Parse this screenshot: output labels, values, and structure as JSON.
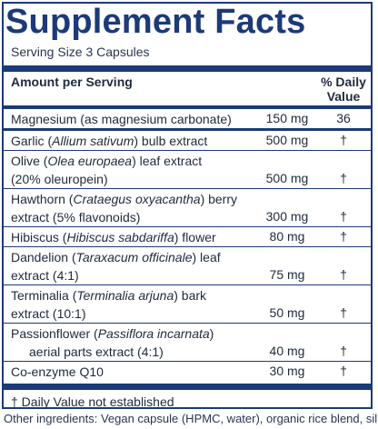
{
  "title": "Supplement Facts",
  "serving_size": "Serving Size 3 Capsules",
  "header": {
    "amount_per_serving": "Amount per Serving",
    "daily_value": "% Daily Value"
  },
  "rows": [
    {
      "name": "Magnesium (as magnesium carbonate)",
      "amount": "150 mg",
      "dv": "36"
    },
    {
      "name_pre": "Garlic (",
      "name_sci": "Allium sativum",
      "name_post": ") bulb extract",
      "amount": "500 mg",
      "dv": "†"
    },
    {
      "name_pre": "Olive (",
      "name_sci": "Olea europaea",
      "name_post": ") leaf extract",
      "name_l2": "(20% oleuropein)",
      "amount": "500 mg",
      "dv": "†"
    },
    {
      "name_pre": "Hawthorn (",
      "name_sci": "Crataegus oxyacantha",
      "name_post": ") berry",
      "name_l2": "extract (5% flavonoids)",
      "amount": "300 mg",
      "dv": "†"
    },
    {
      "name_pre": "Hibiscus (",
      "name_sci": "Hibiscus sabdariffa",
      "name_post": ") flower",
      "amount": "80 mg",
      "dv": "†"
    },
    {
      "name_pre": "Dandelion (",
      "name_sci": "Taraxacum officinale",
      "name_post": ") leaf",
      "name_l2": "extract (4:1)",
      "amount": "75 mg",
      "dv": "†"
    },
    {
      "name_pre": "Terminalia (",
      "name_sci": "Terminalia arjuna",
      "name_post": ") bark",
      "name_l2": "extract (10:1)",
      "amount": "50 mg",
      "dv": "†"
    },
    {
      "name_pre": "Passionflower (",
      "name_sci": "Passiflora incarnata",
      "name_post": ")",
      "name_l2": "aerial parts extract (4:1)",
      "amount": "40 mg",
      "dv": "†"
    },
    {
      "name": "Co-enzyme Q10",
      "amount": "30 mg",
      "dv": "†"
    }
  ],
  "footnote": "† Daily Value not established",
  "other_ingredients": "Other ingredients: Vegan capsule (HPMC, water), organic rice blend, silica.",
  "colors": {
    "brand": "#1c3a78",
    "text": "#1f2a3c"
  }
}
